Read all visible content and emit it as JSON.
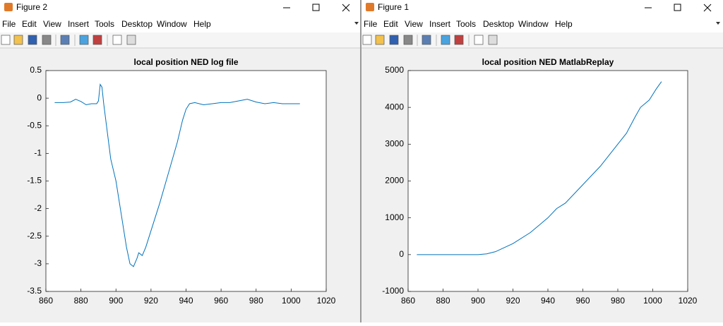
{
  "windows": [
    {
      "title": "Figure 2",
      "menu": [
        "File",
        "Edit",
        "View",
        "Insert",
        "Tools",
        "Desktop",
        "Window",
        "Help"
      ]
    },
    {
      "title": "Figure 1",
      "menu": [
        "File",
        "Edit",
        "View",
        "Insert",
        "Tools",
        "Desktop",
        "Window",
        "Help"
      ]
    }
  ],
  "chart_data": [
    {
      "type": "line",
      "title": "local position NED log file",
      "color": "#0072bd",
      "x": [
        865,
        870,
        874,
        877,
        880,
        883,
        886,
        889,
        890,
        891,
        892,
        893,
        895,
        897,
        900,
        903,
        906,
        908,
        910,
        912,
        913,
        915,
        917,
        920,
        925,
        930,
        935,
        938,
        940,
        942,
        945,
        950,
        955,
        960,
        965,
        970,
        975,
        980,
        985,
        990,
        995,
        1000,
        1005
      ],
      "values": [
        -0.08,
        -0.08,
        -0.07,
        -0.02,
        -0.06,
        -0.12,
        -0.1,
        -0.1,
        -0.05,
        0.25,
        0.2,
        -0.1,
        -0.6,
        -1.1,
        -1.5,
        -2.1,
        -2.7,
        -3.0,
        -3.05,
        -2.9,
        -2.8,
        -2.85,
        -2.7,
        -2.4,
        -1.9,
        -1.35,
        -0.8,
        -0.4,
        -0.2,
        -0.1,
        -0.08,
        -0.12,
        -0.1,
        -0.08,
        -0.08,
        -0.05,
        -0.02,
        -0.07,
        -0.1,
        -0.08,
        -0.1,
        -0.1,
        -0.1
      ],
      "xlim": [
        860,
        1020
      ],
      "xticks": [
        860,
        880,
        900,
        920,
        940,
        960,
        980,
        1000,
        1020
      ],
      "ylim": [
        -3.5,
        0.5
      ],
      "yticks": [
        -3.5,
        -3,
        -2.5,
        -2,
        -1.5,
        -1,
        -0.5,
        0,
        0.5
      ]
    },
    {
      "type": "line",
      "title": "local position NED MatlabReplay",
      "color": "#0072bd",
      "x": [
        865,
        900,
        905,
        910,
        920,
        930,
        940,
        945,
        950,
        960,
        970,
        980,
        985,
        990,
        993,
        998,
        1002,
        1005
      ],
      "values": [
        0,
        0,
        20,
        80,
        300,
        600,
        1000,
        1250,
        1400,
        1900,
        2400,
        3000,
        3300,
        3750,
        4000,
        4200,
        4500,
        4700
      ],
      "xlim": [
        860,
        1020
      ],
      "xticks": [
        860,
        880,
        900,
        920,
        940,
        960,
        980,
        1000,
        1020
      ],
      "ylim": [
        -1000,
        5000
      ],
      "yticks": [
        -1000,
        0,
        1000,
        2000,
        3000,
        4000,
        5000
      ]
    }
  ]
}
